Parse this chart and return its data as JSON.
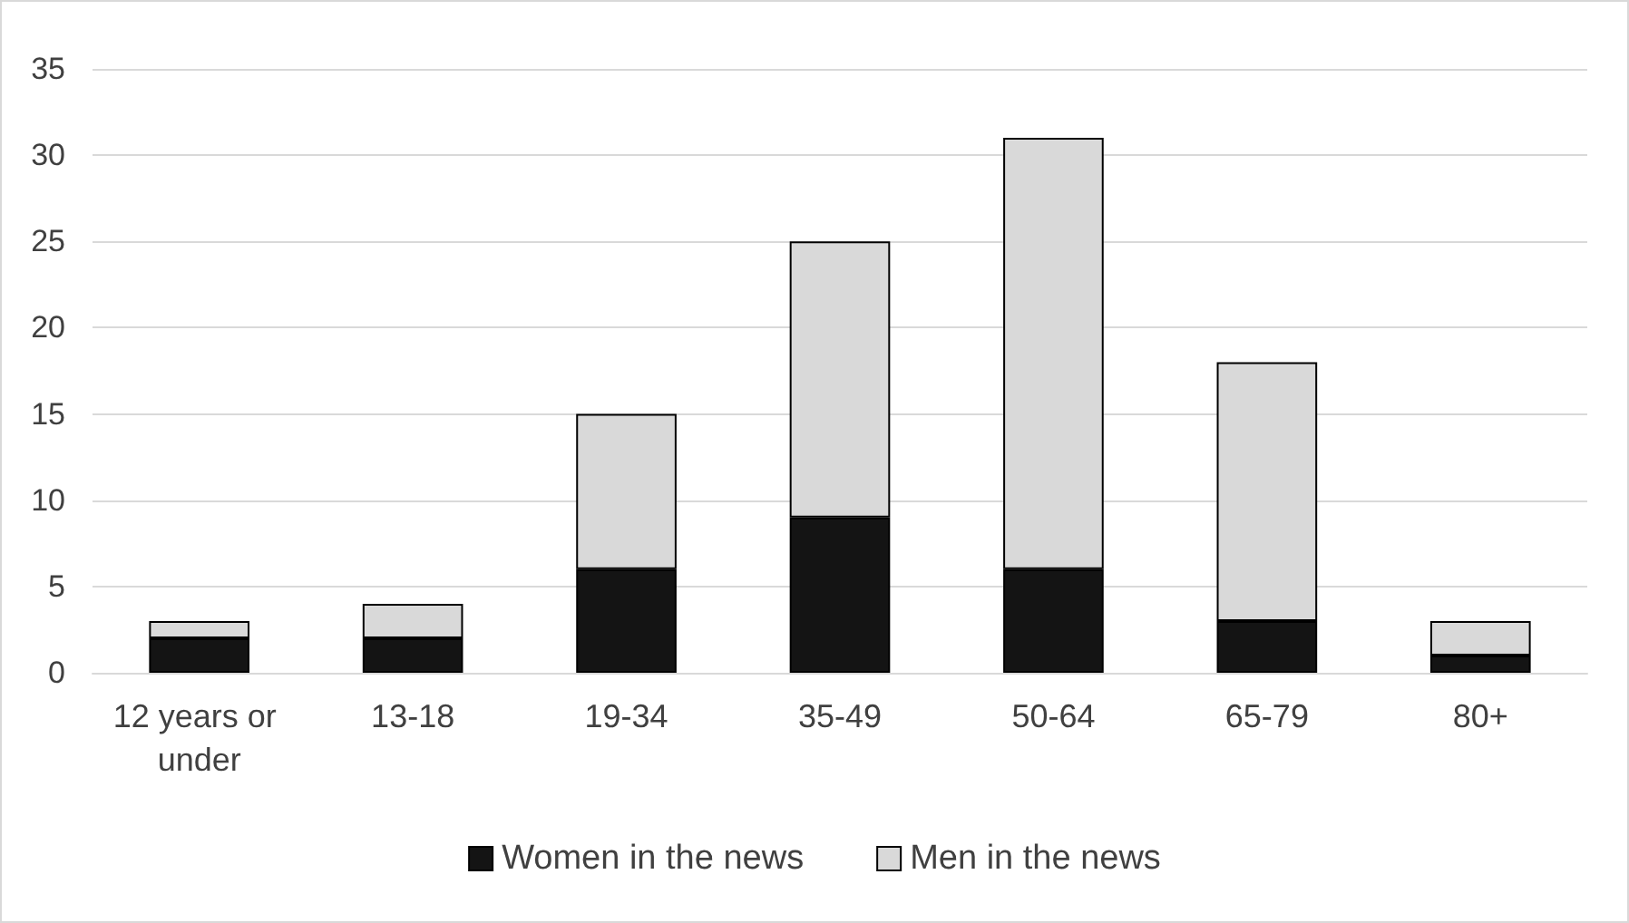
{
  "chart_data": {
    "type": "bar",
    "stacked": true,
    "categories": [
      "12 years or under",
      "13-18",
      "19-34",
      "35-49",
      "50-64",
      "65-79",
      "80+"
    ],
    "series": [
      {
        "name": "Women in the news",
        "color": "#141414",
        "values": [
          2,
          2,
          6,
          9,
          6,
          3,
          1
        ]
      },
      {
        "name": "Men in the news",
        "color": "#d9d9d9",
        "values": [
          1,
          2,
          9,
          16,
          25,
          15,
          2
        ]
      }
    ],
    "ylim": [
      0,
      35
    ],
    "yticks": [
      0,
      5,
      10,
      15,
      20,
      25,
      30,
      35
    ],
    "grid": "y",
    "legend": "bottom"
  }
}
